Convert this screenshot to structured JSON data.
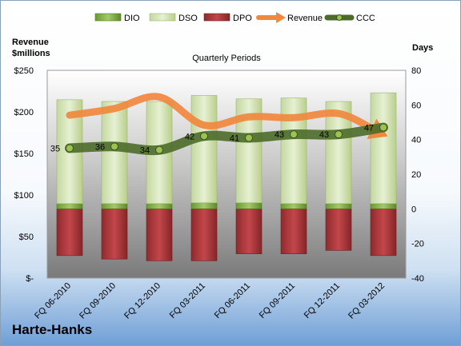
{
  "company": "Harte-Hanks",
  "chart_data": {
    "type": "bar",
    "title": "Quarterly Periods",
    "left_axis_title": [
      "Revenue",
      "$millions"
    ],
    "right_axis_title": "Days",
    "categories": [
      "FQ 06-2010",
      "FQ 09-2010",
      "FQ 12-2010",
      "FQ 03-2011",
      "FQ 06-2011",
      "FQ 09-2011",
      "FQ 12-2011",
      "FQ 03-2012"
    ],
    "left_axis": {
      "min": 0,
      "max": 250,
      "ticks": [
        "$-",
        "$50",
        "$100",
        "$150",
        "$200",
        "$250"
      ]
    },
    "right_axis": {
      "min": -40,
      "max": 80,
      "ticks": [
        "-40",
        "-20",
        "0",
        "20",
        "40",
        "60",
        "80"
      ]
    },
    "legend": {
      "position": "top",
      "entries": [
        "DIO",
        "DSO",
        "DPO",
        "Revenue",
        "CCC"
      ]
    },
    "series": [
      {
        "name": "DIO",
        "axis": "right",
        "values": [
          3,
          3,
          3,
          3.5,
          3.5,
          3,
          3,
          3
        ],
        "color": "#7aa83a"
      },
      {
        "name": "DSO",
        "axis": "right",
        "values": [
          60,
          59,
          59,
          62,
          60,
          61,
          59,
          64
        ],
        "color": "#d7e4bd"
      },
      {
        "name": "DPO",
        "axis": "right",
        "values": [
          -27,
          -29,
          -30,
          -30,
          -26,
          -26,
          -24,
          -27
        ],
        "color": "#a83236"
      },
      {
        "name": "Revenue",
        "axis": "left",
        "values": [
          196,
          204,
          218,
          184,
          194,
          193,
          198,
          173
        ],
        "color": "#f0883e"
      },
      {
        "name": "CCC",
        "axis": "right",
        "values": [
          35,
          36,
          34,
          42,
          41,
          43,
          43,
          47
        ],
        "labels": [
          "35",
          "36",
          "34",
          "42",
          "41",
          "43",
          "43",
          "47"
        ],
        "color": "#4d6b2a"
      }
    ],
    "grid": false
  }
}
